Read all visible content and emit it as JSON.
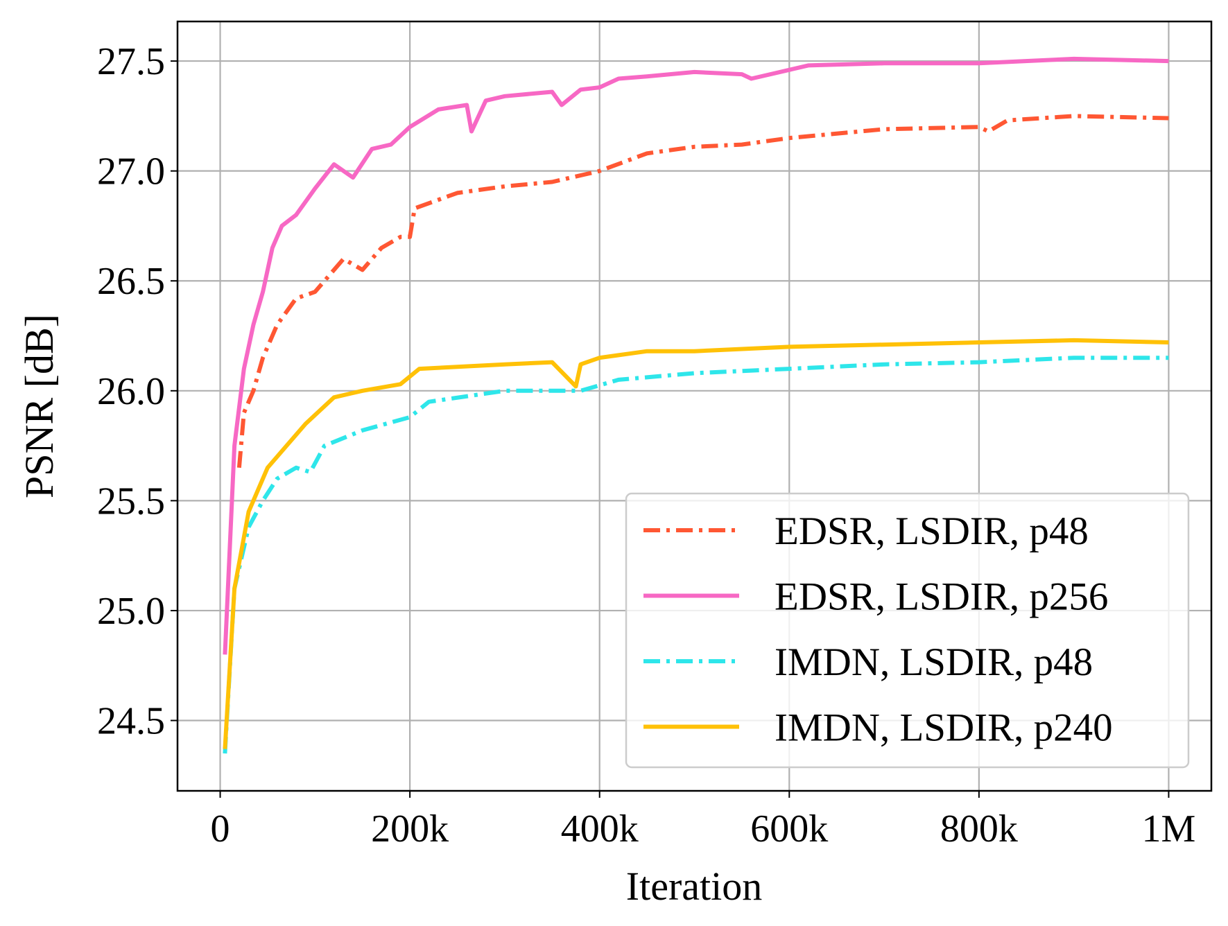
{
  "chart_data": {
    "type": "line",
    "xlabel": "Iteration",
    "ylabel": "PSNR [dB]",
    "xlim": [
      -45000,
      1045000
    ],
    "ylim": [
      24.18,
      27.68
    ],
    "grid": true,
    "legend_position": "lower-right",
    "x_ticks": [
      {
        "v": 0,
        "label": "0"
      },
      {
        "v": 200000,
        "label": "200k"
      },
      {
        "v": 400000,
        "label": "400k"
      },
      {
        "v": 600000,
        "label": "600k"
      },
      {
        "v": 800000,
        "label": "800k"
      },
      {
        "v": 1000000,
        "label": "1M"
      }
    ],
    "y_ticks": [
      {
        "v": 24.5,
        "label": "24.5"
      },
      {
        "v": 25.0,
        "label": "25.0"
      },
      {
        "v": 25.5,
        "label": "25.5"
      },
      {
        "v": 26.0,
        "label": "26.0"
      },
      {
        "v": 26.5,
        "label": "26.5"
      },
      {
        "v": 27.0,
        "label": "27.0"
      },
      {
        "v": 27.5,
        "label": "27.5"
      }
    ],
    "series": [
      {
        "name": "EDSR, LSDIR, p48",
        "color": "#FF5733",
        "style": "dashdot",
        "x": [
          20000,
          25000,
          35000,
          45000,
          60000,
          80000,
          100000,
          130000,
          150000,
          170000,
          190000,
          200000,
          205000,
          250000,
          300000,
          350000,
          400000,
          450000,
          500000,
          550000,
          600000,
          700000,
          800000,
          810000,
          830000,
          900000,
          1000000
        ],
        "y": [
          25.65,
          25.9,
          26.0,
          26.15,
          26.3,
          26.42,
          26.45,
          26.6,
          26.55,
          26.65,
          26.7,
          26.7,
          26.83,
          26.9,
          26.93,
          26.95,
          27.0,
          27.08,
          27.11,
          27.12,
          27.15,
          27.19,
          27.2,
          27.18,
          27.23,
          27.25,
          27.24
        ]
      },
      {
        "name": "EDSR, LSDIR, p256",
        "color": "#F768C4",
        "style": "solid",
        "x": [
          5000,
          15000,
          25000,
          35000,
          45000,
          55000,
          65000,
          80000,
          100000,
          120000,
          140000,
          160000,
          180000,
          200000,
          230000,
          260000,
          265000,
          280000,
          300000,
          350000,
          360000,
          380000,
          400000,
          420000,
          450000,
          500000,
          550000,
          560000,
          600000,
          620000,
          700000,
          800000,
          900000,
          1000000
        ],
        "y": [
          24.8,
          25.75,
          26.1,
          26.3,
          26.45,
          26.65,
          26.75,
          26.8,
          26.92,
          27.03,
          26.97,
          27.1,
          27.12,
          27.2,
          27.28,
          27.3,
          27.18,
          27.32,
          27.34,
          27.36,
          27.3,
          27.37,
          27.38,
          27.42,
          27.43,
          27.45,
          27.44,
          27.42,
          27.46,
          27.48,
          27.49,
          27.49,
          27.51,
          27.5
        ]
      },
      {
        "name": "IMDN, LSDIR, p48",
        "color": "#2EE6EA",
        "style": "dashdot",
        "x": [
          5000,
          15000,
          30000,
          45000,
          60000,
          80000,
          95000,
          110000,
          150000,
          200000,
          220000,
          300000,
          380000,
          420000,
          500000,
          600000,
          700000,
          800000,
          900000,
          1000000
        ],
        "y": [
          24.35,
          25.1,
          25.38,
          25.5,
          25.6,
          25.65,
          25.63,
          25.75,
          25.82,
          25.88,
          25.95,
          26.0,
          26.0,
          26.05,
          26.08,
          26.1,
          26.12,
          26.13,
          26.15,
          26.15
        ]
      },
      {
        "name": "IMDN, LSDIR, p240",
        "color": "#FFC107",
        "style": "solid",
        "x": [
          5000,
          15000,
          30000,
          50000,
          70000,
          90000,
          120000,
          150000,
          190000,
          210000,
          300000,
          350000,
          375000,
          380000,
          400000,
          450000,
          500000,
          600000,
          700000,
          800000,
          900000,
          1000000
        ],
        "y": [
          24.37,
          25.1,
          25.45,
          25.65,
          25.75,
          25.85,
          25.97,
          26.0,
          26.03,
          26.1,
          26.12,
          26.13,
          26.02,
          26.12,
          26.15,
          26.18,
          26.18,
          26.2,
          26.21,
          26.22,
          26.23,
          26.22
        ]
      }
    ]
  }
}
